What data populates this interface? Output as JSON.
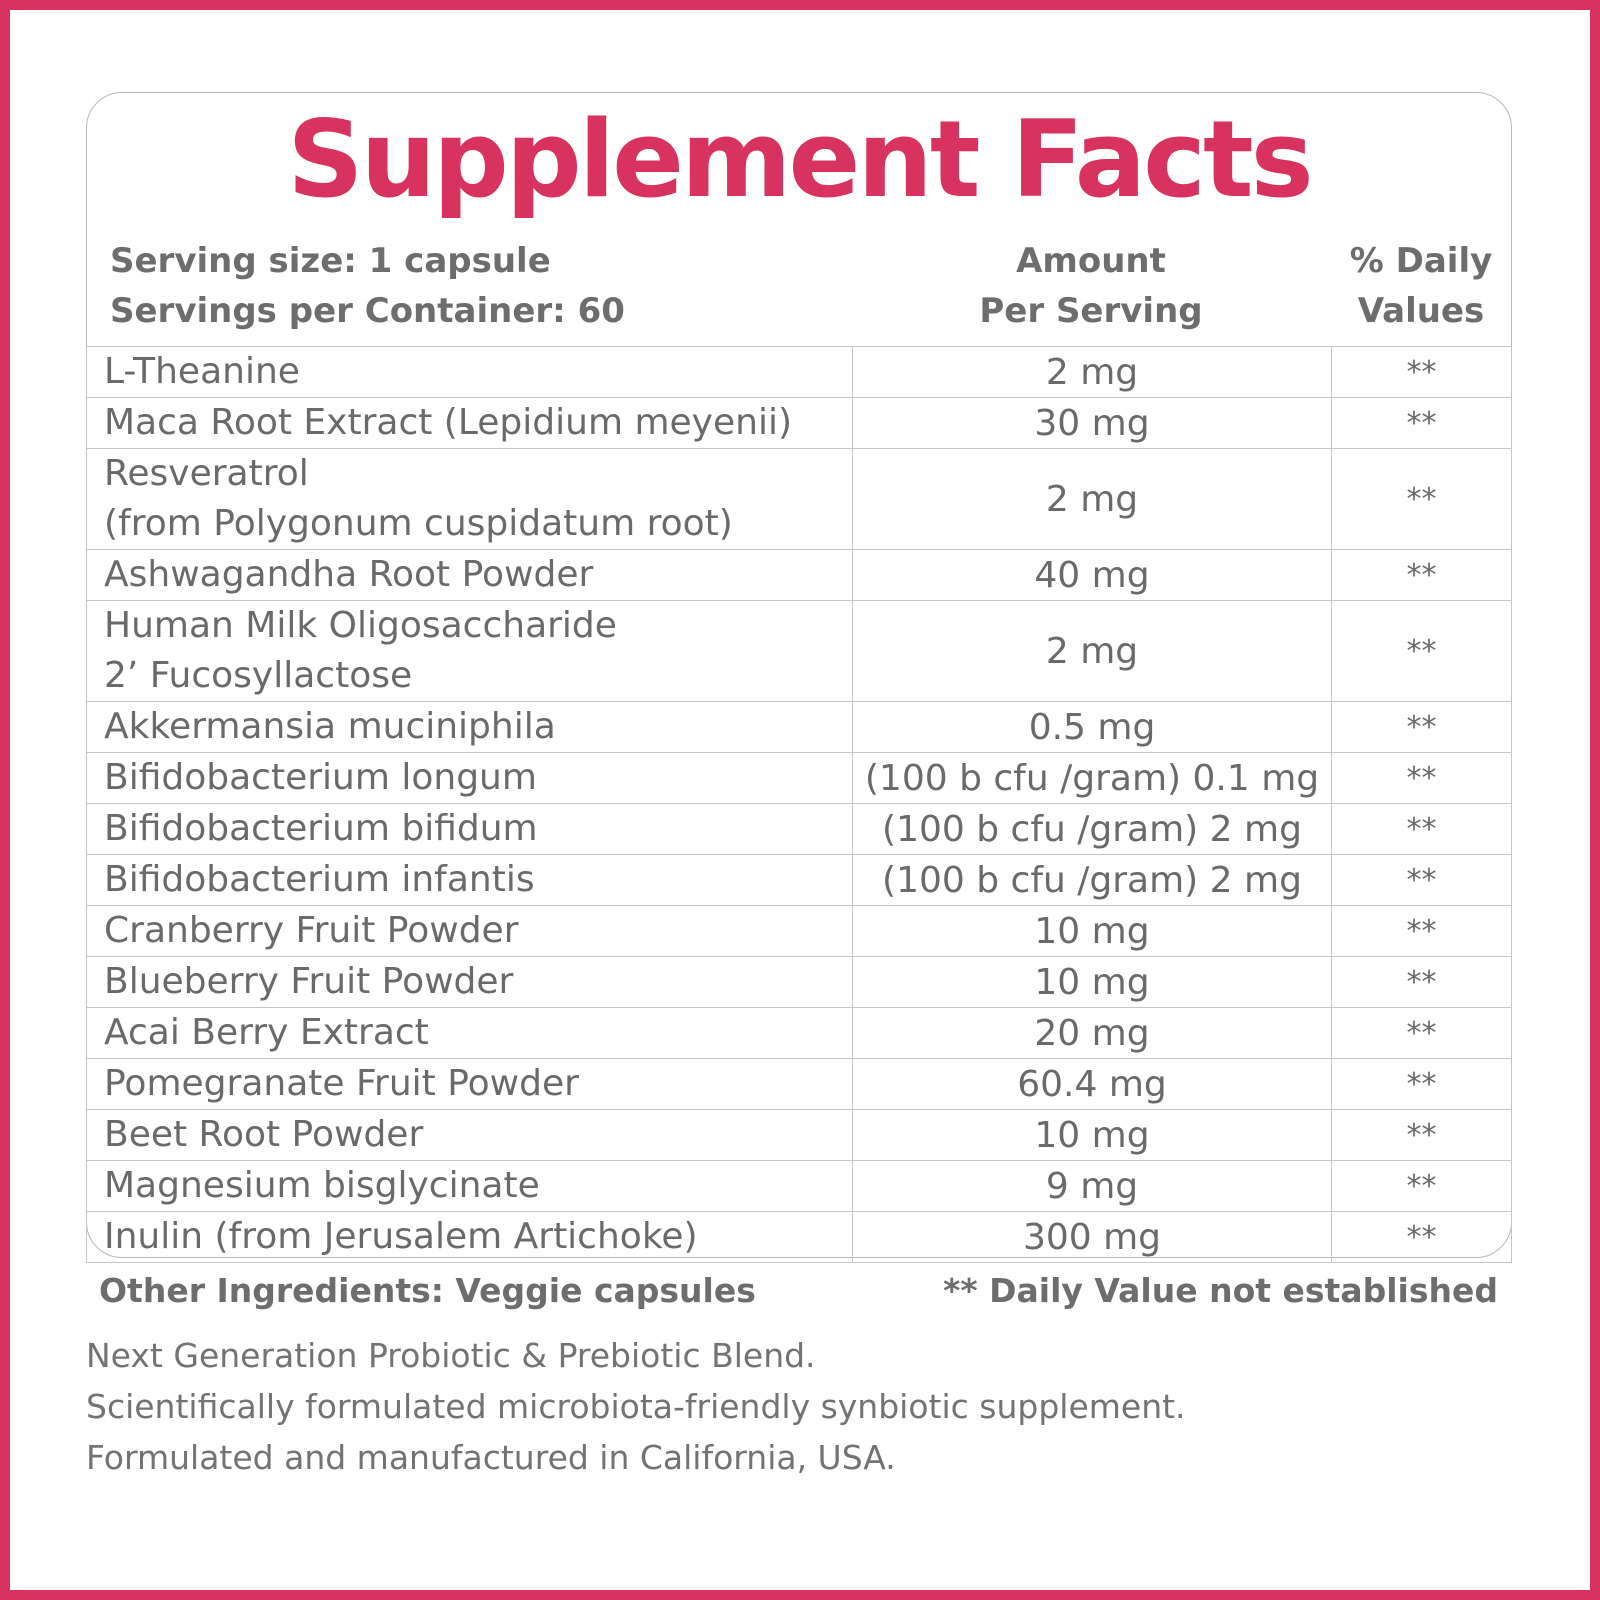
{
  "title": "Supplement Facts",
  "header": {
    "serving_size": "Serving size: 1 capsule",
    "servings_per_container": "Servings per Container: 60",
    "amount_line1": "Amount",
    "amount_line2": "Per Serving",
    "dv_line1": "% Daily",
    "dv_line2": "Values"
  },
  "rows": [
    {
      "name": [
        "L-Theanine"
      ],
      "amount": "2 mg",
      "dv": "**"
    },
    {
      "name": [
        "Maca Root Extract (Lepidium meyenii)"
      ],
      "amount": "30 mg",
      "dv": "**"
    },
    {
      "name": [
        "Resveratrol",
        "(from Polygonum cuspidatum root)"
      ],
      "amount": "2 mg",
      "dv": "**"
    },
    {
      "name": [
        "Ashwagandha Root Powder"
      ],
      "amount": "40 mg",
      "dv": "**"
    },
    {
      "name": [
        "Human Milk Oligosaccharide",
        "2’ Fucosyllactose"
      ],
      "amount": "2 mg",
      "dv": "**"
    },
    {
      "name": [
        "Akkermansia muciniphila"
      ],
      "amount": "0.5 mg",
      "dv": "**"
    },
    {
      "name": [
        "Bifidobacterium longum"
      ],
      "amount": "(100 b cfu /gram) 0.1 mg",
      "dv": "**"
    },
    {
      "name": [
        "Bifidobacterium bifidum"
      ],
      "amount": "(100 b cfu /gram) 2 mg",
      "dv": "**"
    },
    {
      "name": [
        "Bifidobacterium infantis"
      ],
      "amount": "(100 b cfu /gram) 2 mg",
      "dv": "**"
    },
    {
      "name": [
        "Cranberry Fruit Powder"
      ],
      "amount": "10 mg",
      "dv": "**"
    },
    {
      "name": [
        "Blueberry Fruit Powder"
      ],
      "amount": "10 mg",
      "dv": "**"
    },
    {
      "name": [
        "Acai Berry Extract"
      ],
      "amount": "20 mg",
      "dv": "**"
    },
    {
      "name": [
        "Pomegranate Fruit Powder"
      ],
      "amount": "60.4 mg",
      "dv": "**"
    },
    {
      "name": [
        "Beet Root Powder"
      ],
      "amount": "10 mg",
      "dv": "**"
    },
    {
      "name": [
        "Magnesium bisglycinate"
      ],
      "amount": "9 mg",
      "dv": "**"
    },
    {
      "name": [
        "Inulin (from Jerusalem Artichoke)"
      ],
      "amount": "300 mg",
      "dv": "**"
    }
  ],
  "footer": {
    "other_ingredients": "Other Ingredients: Veggie capsules",
    "dv_note": "** Daily Value not established"
  },
  "notes": [
    "Next Generation Probiotic & Prebiotic Blend.",
    "Scientifically formulated microbiota-friendly synbiotic supplement.",
    "Formulated and manufactured in California, USA."
  ],
  "colors": {
    "accent": "#d8325f",
    "text": "#6a6a6a",
    "grid": "#c6c6c6"
  }
}
